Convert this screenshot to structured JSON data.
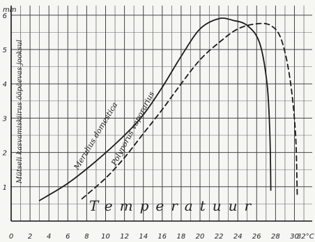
{
  "chart_data": {
    "type": "line",
    "ylabel": "Mütseli kasvamiskiirus ööpäevas jooksul",
    "xlabel": "Temperatuur",
    "y_unit_label": "mm",
    "x_unit_label": "32°C",
    "xlim": [
      0,
      33
    ],
    "ylim": [
      0,
      6.2
    ],
    "x_ticks": [
      "0",
      "2",
      "4",
      "6",
      "8",
      "10",
      "12",
      "14",
      "16",
      "18",
      "20",
      "22",
      "24",
      "26",
      "28",
      "30"
    ],
    "y_ticks": [
      "1",
      "2",
      "3",
      "4",
      "5",
      "6"
    ],
    "grid": true,
    "series": [
      {
        "name": "Merulius domestica",
        "style": "solid",
        "color": "#1a1a1a",
        "points": [
          [
            3,
            0.6
          ],
          [
            6,
            1.1
          ],
          [
            9,
            1.75
          ],
          [
            12,
            2.5
          ],
          [
            14,
            3.1
          ],
          [
            16,
            3.9
          ],
          [
            18,
            4.8
          ],
          [
            20,
            5.6
          ],
          [
            22,
            5.9
          ],
          [
            23.5,
            5.85
          ],
          [
            25,
            5.7
          ],
          [
            26.3,
            5.2
          ],
          [
            27.1,
            4.0
          ],
          [
            27.4,
            2.5
          ],
          [
            27.5,
            0.9
          ]
        ]
      },
      {
        "name": "Polyporus vaporarius",
        "style": "dashed",
        "color": "#1a1a1a",
        "points": [
          [
            7.5,
            0.65
          ],
          [
            10,
            1.25
          ],
          [
            12,
            1.85
          ],
          [
            14,
            2.55
          ],
          [
            16,
            3.25
          ],
          [
            18,
            4.0
          ],
          [
            20,
            4.7
          ],
          [
            22,
            5.2
          ],
          [
            24,
            5.6
          ],
          [
            26,
            5.75
          ],
          [
            27.5,
            5.7
          ],
          [
            28.6,
            5.3
          ],
          [
            29.5,
            4.2
          ],
          [
            30.1,
            2.6
          ],
          [
            30.3,
            0.7
          ]
        ]
      }
    ]
  }
}
